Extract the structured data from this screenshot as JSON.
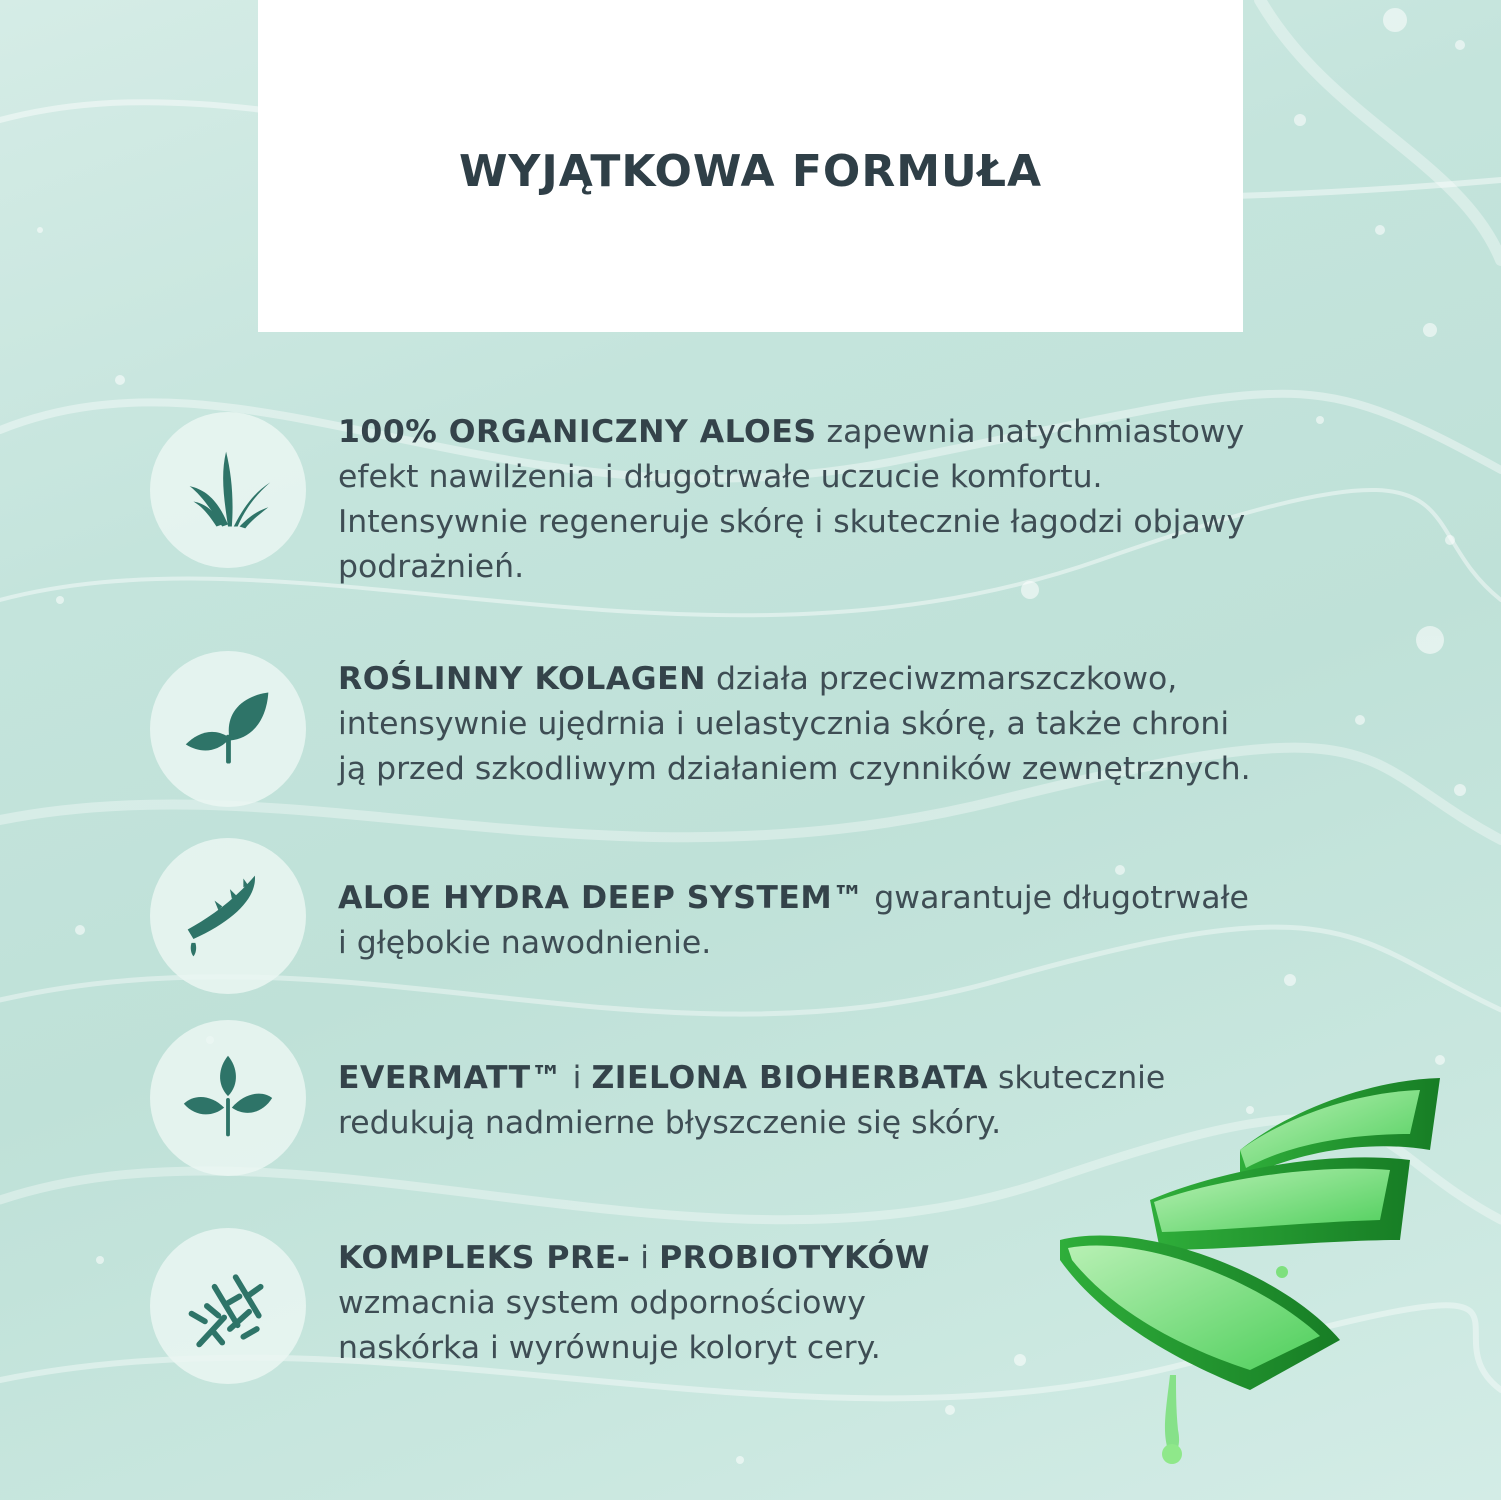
{
  "header": {
    "title": "WYJĄTKOWA FORMUŁA"
  },
  "features": [
    {
      "icon": "aloe-plant-icon",
      "lines": [
        {
          "bold": "100% ORGANICZNY ALOES",
          "text": " zapewnia natychmiastowy"
        },
        {
          "bold": "",
          "text": "efekt nawilżenia i długotrwałe uczucie komfortu."
        },
        {
          "bold": "",
          "text": "Intensywnie regeneruje skórę i skutecznie łagodzi objawy"
        },
        {
          "bold": "",
          "text": "podrażnień."
        }
      ]
    },
    {
      "icon": "leaf-sprout-icon",
      "lines": [
        {
          "bold": "ROŚLINNY KOLAGEN",
          "text": " działa przeciwzmarszczkowo,"
        },
        {
          "bold": "",
          "text": "intensywnie ujędrnia i uelastycznia skórę, a także chroni"
        },
        {
          "bold": "",
          "text": "ją przed szkodliwym działaniem czynników zewnętrznych."
        }
      ]
    },
    {
      "icon": "aloe-leaf-drop-icon",
      "lines": [
        {
          "bold": "ALOE HYDRA DEEP SYSTEM™",
          "text": " gwarantuje długotrwałe"
        },
        {
          "bold": "",
          "text": "i głębokie nawodnienie."
        }
      ]
    },
    {
      "icon": "tea-leaves-icon",
      "lines": [
        {
          "bold": "EVERMATT™",
          "text": " i "
        },
        {
          "bold": "ZIELONA BIOHERBATA",
          "text": " skutecznie"
        },
        {
          "bold": "",
          "text": "redukują nadmierne błyszczenie się skóry."
        }
      ]
    },
    {
      "icon": "probiotics-icon",
      "lines": [
        {
          "bold": "KOMPLEKS PRE-",
          "text": " i "
        },
        {
          "bold": "PROBIOTYKÓW",
          "text": ""
        },
        {
          "bold": "",
          "text": "wzmacnia system odpornościowy"
        },
        {
          "bold": "",
          "text": "naskórka i wyrównuje koloryt cery."
        }
      ]
    }
  ],
  "colors": {
    "icon": "#2e7468",
    "text": "#3e4d54",
    "heading": "#2f3f47"
  }
}
